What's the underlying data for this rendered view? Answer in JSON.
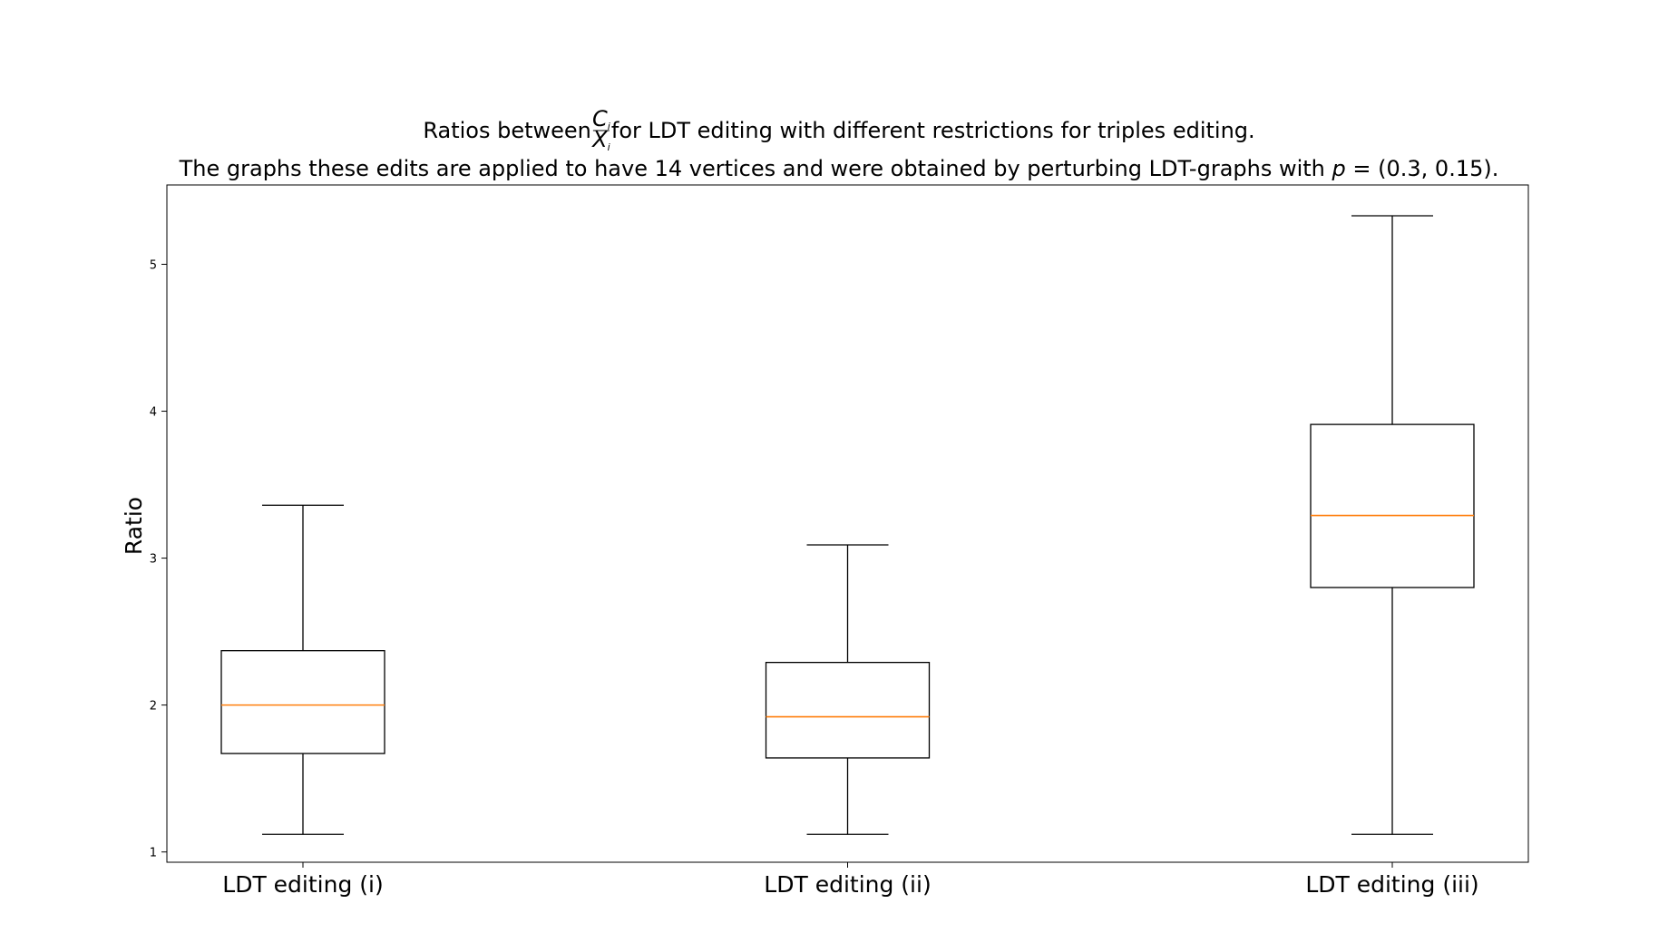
{
  "chart_data": {
    "type": "box",
    "title_line1_before": "Ratios between ",
    "title_fraction_numerator": "C",
    "title_fraction_denominator": "X",
    "title_fraction_subscript": "i",
    "title_line1_after": " for LDT editing with different restrictions for triples editing.",
    "title_line2_before": "The graphs these edits are applied to have 14 vertices and were obtained by perturbing LDT-graphs with ",
    "title_line2_var": "p",
    "title_line2_after": " = (0.3, 0.15).",
    "xlabel": "",
    "ylabel": "Ratio",
    "ylim": [
      0.93,
      5.54
    ],
    "yticks": [
      1,
      2,
      3,
      4,
      5
    ],
    "grid": false,
    "categories": [
      "LDT editing (i)",
      "LDT editing (ii)",
      "LDT editing (iii)"
    ],
    "boxes": [
      {
        "whisker_low": 1.12,
        "q1": 1.67,
        "median": 2.0,
        "q3": 2.37,
        "whisker_high": 3.36
      },
      {
        "whisker_low": 1.12,
        "q1": 1.64,
        "median": 1.92,
        "q3": 2.29,
        "whisker_high": 3.09
      },
      {
        "whisker_low": 1.12,
        "q1": 2.8,
        "median": 3.29,
        "q3": 3.91,
        "whisker_high": 5.33
      }
    ],
    "colors": {
      "box": "#000000",
      "median": "#ff7f0e"
    }
  }
}
